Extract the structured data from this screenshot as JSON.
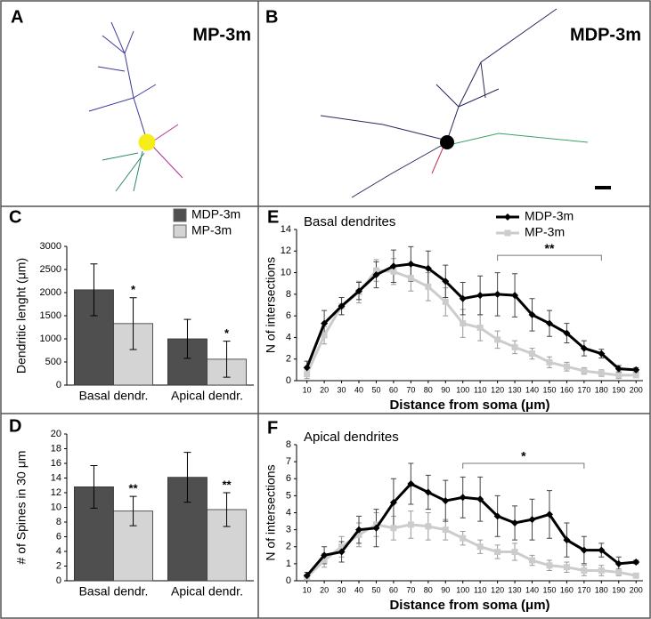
{
  "images": [
    {
      "panel": "A",
      "title": "MP-3m"
    },
    {
      "panel": "B",
      "title": "MDP-3m"
    }
  ],
  "chart_data": [
    {
      "type": "bar",
      "panel": "C",
      "ylabel": "Dendritic lenght (μm)",
      "categories": [
        "Basal dendr.",
        "Apical dendr."
      ],
      "series": [
        {
          "name": "MDP-3m",
          "color": "#4f4f4f",
          "values": [
            2060,
            1000
          ],
          "errors": [
            560,
            420
          ]
        },
        {
          "name": "MP-3m",
          "color": "#d4d4d4",
          "values": [
            1330,
            560
          ],
          "errors": [
            560,
            390
          ],
          "significance": [
            "*",
            "*"
          ]
        }
      ],
      "ylim": [
        0,
        3000
      ],
      "yticks": [
        0,
        500,
        1000,
        1500,
        2000,
        2500,
        3000
      ],
      "legend": "upper right"
    },
    {
      "type": "bar",
      "panel": "D",
      "ylabel": "# of Spines in 30 μm",
      "categories": [
        "Basal dendr.",
        "Apical dendr."
      ],
      "series": [
        {
          "name": "MDP-3m",
          "color": "#4f4f4f",
          "values": [
            12.8,
            14.1
          ],
          "errors": [
            2.9,
            3.4
          ]
        },
        {
          "name": "MP-3m",
          "color": "#d4d4d4",
          "values": [
            9.5,
            9.7
          ],
          "errors": [
            2.0,
            2.3
          ],
          "significance": [
            "**",
            "**"
          ]
        }
      ],
      "ylim": [
        0,
        20
      ],
      "yticks": [
        0,
        2,
        4,
        6,
        8,
        10,
        12,
        14,
        16,
        18,
        20
      ]
    },
    {
      "type": "line",
      "panel": "E",
      "title": "Basal dendrites",
      "xlabel": "Distance from soma (μm)",
      "ylabel": "N of intersections",
      "x": [
        10,
        20,
        30,
        40,
        50,
        60,
        70,
        80,
        90,
        100,
        110,
        120,
        130,
        140,
        150,
        160,
        170,
        180,
        190,
        200
      ],
      "series": [
        {
          "name": "MDP-3m",
          "color": "#000000",
          "marker": "diamond",
          "values": [
            1.2,
            5.3,
            6.9,
            8.3,
            9.8,
            10.6,
            10.8,
            10.4,
            9.2,
            7.6,
            7.9,
            8.0,
            7.9,
            6.1,
            5.3,
            4.4,
            3.0,
            2.5,
            1.1,
            1.0
          ],
          "errors": [
            0.6,
            1.2,
            0.8,
            0.8,
            1.2,
            1.5,
            1.6,
            1.6,
            1.5,
            1.5,
            1.8,
            2.0,
            2.0,
            1.5,
            1.2,
            0.9,
            0.7,
            0.4,
            0.3,
            0.2
          ]
        },
        {
          "name": "MP-3m",
          "color": "#cccccc",
          "marker": "square",
          "values": [
            0.6,
            4.2,
            6.9,
            8.2,
            10.2,
            10.1,
            9.5,
            8.7,
            7.3,
            5.3,
            4.9,
            3.8,
            3.1,
            2.5,
            1.7,
            1.3,
            0.9,
            0.7,
            0.5,
            0.5
          ],
          "errors": [
            0.4,
            0.8,
            0.8,
            1.0,
            1.0,
            1.2,
            1.2,
            1.3,
            1.3,
            1.3,
            1.2,
            0.8,
            0.6,
            0.5,
            0.5,
            0.4,
            0.3,
            0.3,
            0.3,
            0.2
          ]
        }
      ],
      "bracket": {
        "text": "**",
        "x": [
          120,
          180
        ],
        "y": 11.6
      },
      "xlim": [
        4,
        204
      ],
      "xticks": [
        10,
        20,
        30,
        40,
        50,
        60,
        70,
        80,
        90,
        100,
        110,
        120,
        130,
        140,
        150,
        160,
        170,
        180,
        190,
        200
      ],
      "ylim": [
        0,
        14
      ],
      "yticks": [
        0,
        2,
        4,
        6,
        8,
        10,
        12,
        14
      ],
      "legend": "upper right"
    },
    {
      "type": "line",
      "panel": "F",
      "title": "Apical dendrites",
      "xlabel": "Distance from soma (μm)",
      "ylabel": "N of intersections",
      "x": [
        10,
        20,
        30,
        40,
        50,
        60,
        70,
        80,
        90,
        100,
        110,
        120,
        130,
        140,
        150,
        160,
        170,
        180,
        190,
        200
      ],
      "series": [
        {
          "name": "MDP-3m",
          "color": "#000000",
          "marker": "diamond",
          "values": [
            0.3,
            1.5,
            1.7,
            3.0,
            3.1,
            4.6,
            5.7,
            5.2,
            4.7,
            4.9,
            4.8,
            3.8,
            3.4,
            3.6,
            3.9,
            2.4,
            1.8,
            1.8,
            1.0,
            1.1
          ],
          "errors": [
            0.2,
            0.5,
            0.6,
            0.8,
            1.1,
            1.4,
            1.2,
            1.0,
            1.2,
            1.2,
            1.3,
            1.2,
            1.0,
            1.2,
            1.4,
            1.0,
            0.8,
            0.4,
            0.4,
            0.1
          ]
        },
        {
          "name": "MP-3m",
          "color": "#cccccc",
          "marker": "square",
          "values": [
            0.2,
            1.2,
            2.0,
            2.7,
            3.3,
            3.1,
            3.3,
            3.2,
            3.0,
            2.5,
            2.0,
            1.7,
            1.7,
            1.2,
            0.9,
            0.8,
            0.6,
            0.6,
            0.5,
            0.3
          ],
          "errors": [
            0.1,
            0.4,
            0.6,
            0.7,
            0.7,
            0.7,
            0.8,
            0.8,
            0.6,
            0.4,
            0.4,
            0.4,
            0.5,
            0.3,
            0.3,
            0.3,
            0.3,
            0.3,
            0.2,
            0.1
          ]
        }
      ],
      "bracket": {
        "text": "*",
        "x": [
          100,
          170
        ],
        "y": 6.9
      },
      "xlim": [
        4,
        204
      ],
      "xticks": [
        10,
        20,
        30,
        40,
        50,
        60,
        70,
        80,
        90,
        100,
        110,
        120,
        130,
        140,
        150,
        160,
        170,
        180,
        190,
        200
      ],
      "ylim": [
        0,
        8
      ],
      "yticks": [
        0,
        1,
        2,
        3,
        4,
        5,
        6,
        7,
        8
      ]
    }
  ]
}
